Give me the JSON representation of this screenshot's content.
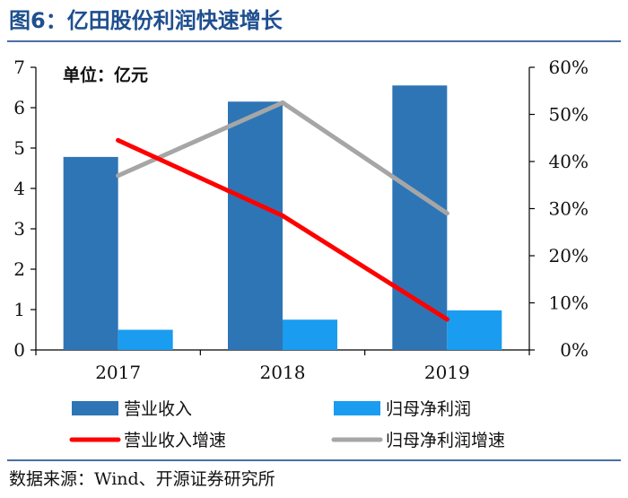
{
  "title": "图6：亿田股份利润快速增长",
  "source": "数据来源：Wind、开源证券研究所",
  "chart_data": {
    "type": "bar+line",
    "unit_label": "单位：亿元",
    "categories": [
      "2017",
      "2018",
      "2019"
    ],
    "y_left": {
      "min": 0,
      "max": 7,
      "ticks": [
        "0",
        "1",
        "2",
        "3",
        "4",
        "5",
        "6",
        "7"
      ]
    },
    "y_right": {
      "min": 0,
      "max": 60,
      "ticks": [
        "0%",
        "10%",
        "20%",
        "30%",
        "40%",
        "50%",
        "60%"
      ]
    },
    "bar_series": [
      {
        "name": "营业收入",
        "axis": "left",
        "color": "#2e75b6",
        "values": [
          4.78,
          6.15,
          6.55
        ]
      },
      {
        "name": "归母净利润",
        "axis": "left",
        "color": "#1a9cf0",
        "values": [
          0.5,
          0.75,
          0.98
        ]
      }
    ],
    "line_series": [
      {
        "name": "营业收入增速",
        "axis": "right",
        "color": "#ff0000",
        "values": [
          44.5,
          28.5,
          6.5
        ]
      },
      {
        "name": "归母净利润增速",
        "axis": "right",
        "color": "#a6a6a6",
        "values": [
          37,
          52.5,
          29
        ]
      }
    ],
    "legend": [
      {
        "name": "营业收入",
        "kind": "bar",
        "color": "#2e75b6"
      },
      {
        "name": "归母净利润",
        "kind": "bar",
        "color": "#1a9cf0"
      },
      {
        "name": "营业收入增速",
        "kind": "line",
        "color": "#ff0000"
      },
      {
        "name": "归母净利润增速",
        "kind": "line",
        "color": "#a6a6a6"
      }
    ]
  }
}
